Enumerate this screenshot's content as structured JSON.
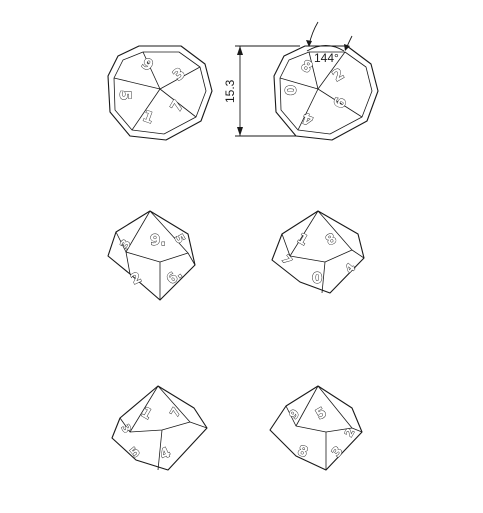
{
  "drawing": {
    "dimension_height": "15.3",
    "dimension_angle": "144°",
    "top_view_left": {
      "numerals": [
        "9",
        "3",
        "5",
        "7",
        "1"
      ]
    },
    "top_view_right": {
      "numerals": [
        "8",
        "2",
        "0",
        "6",
        "4"
      ]
    },
    "mid_left": {
      "numerals": [
        "9.",
        "2",
        "6.",
        "3",
        "5"
      ]
    },
    "mid_right": {
      "numerals": [
        "1",
        "8",
        "0",
        "7",
        "4"
      ]
    },
    "bottom_left": {
      "numerals": [
        "1",
        "7",
        "4",
        "5",
        "3"
      ]
    },
    "bottom_right": {
      "numerals": [
        "9",
        "5",
        "8",
        "3",
        "2"
      ]
    }
  }
}
